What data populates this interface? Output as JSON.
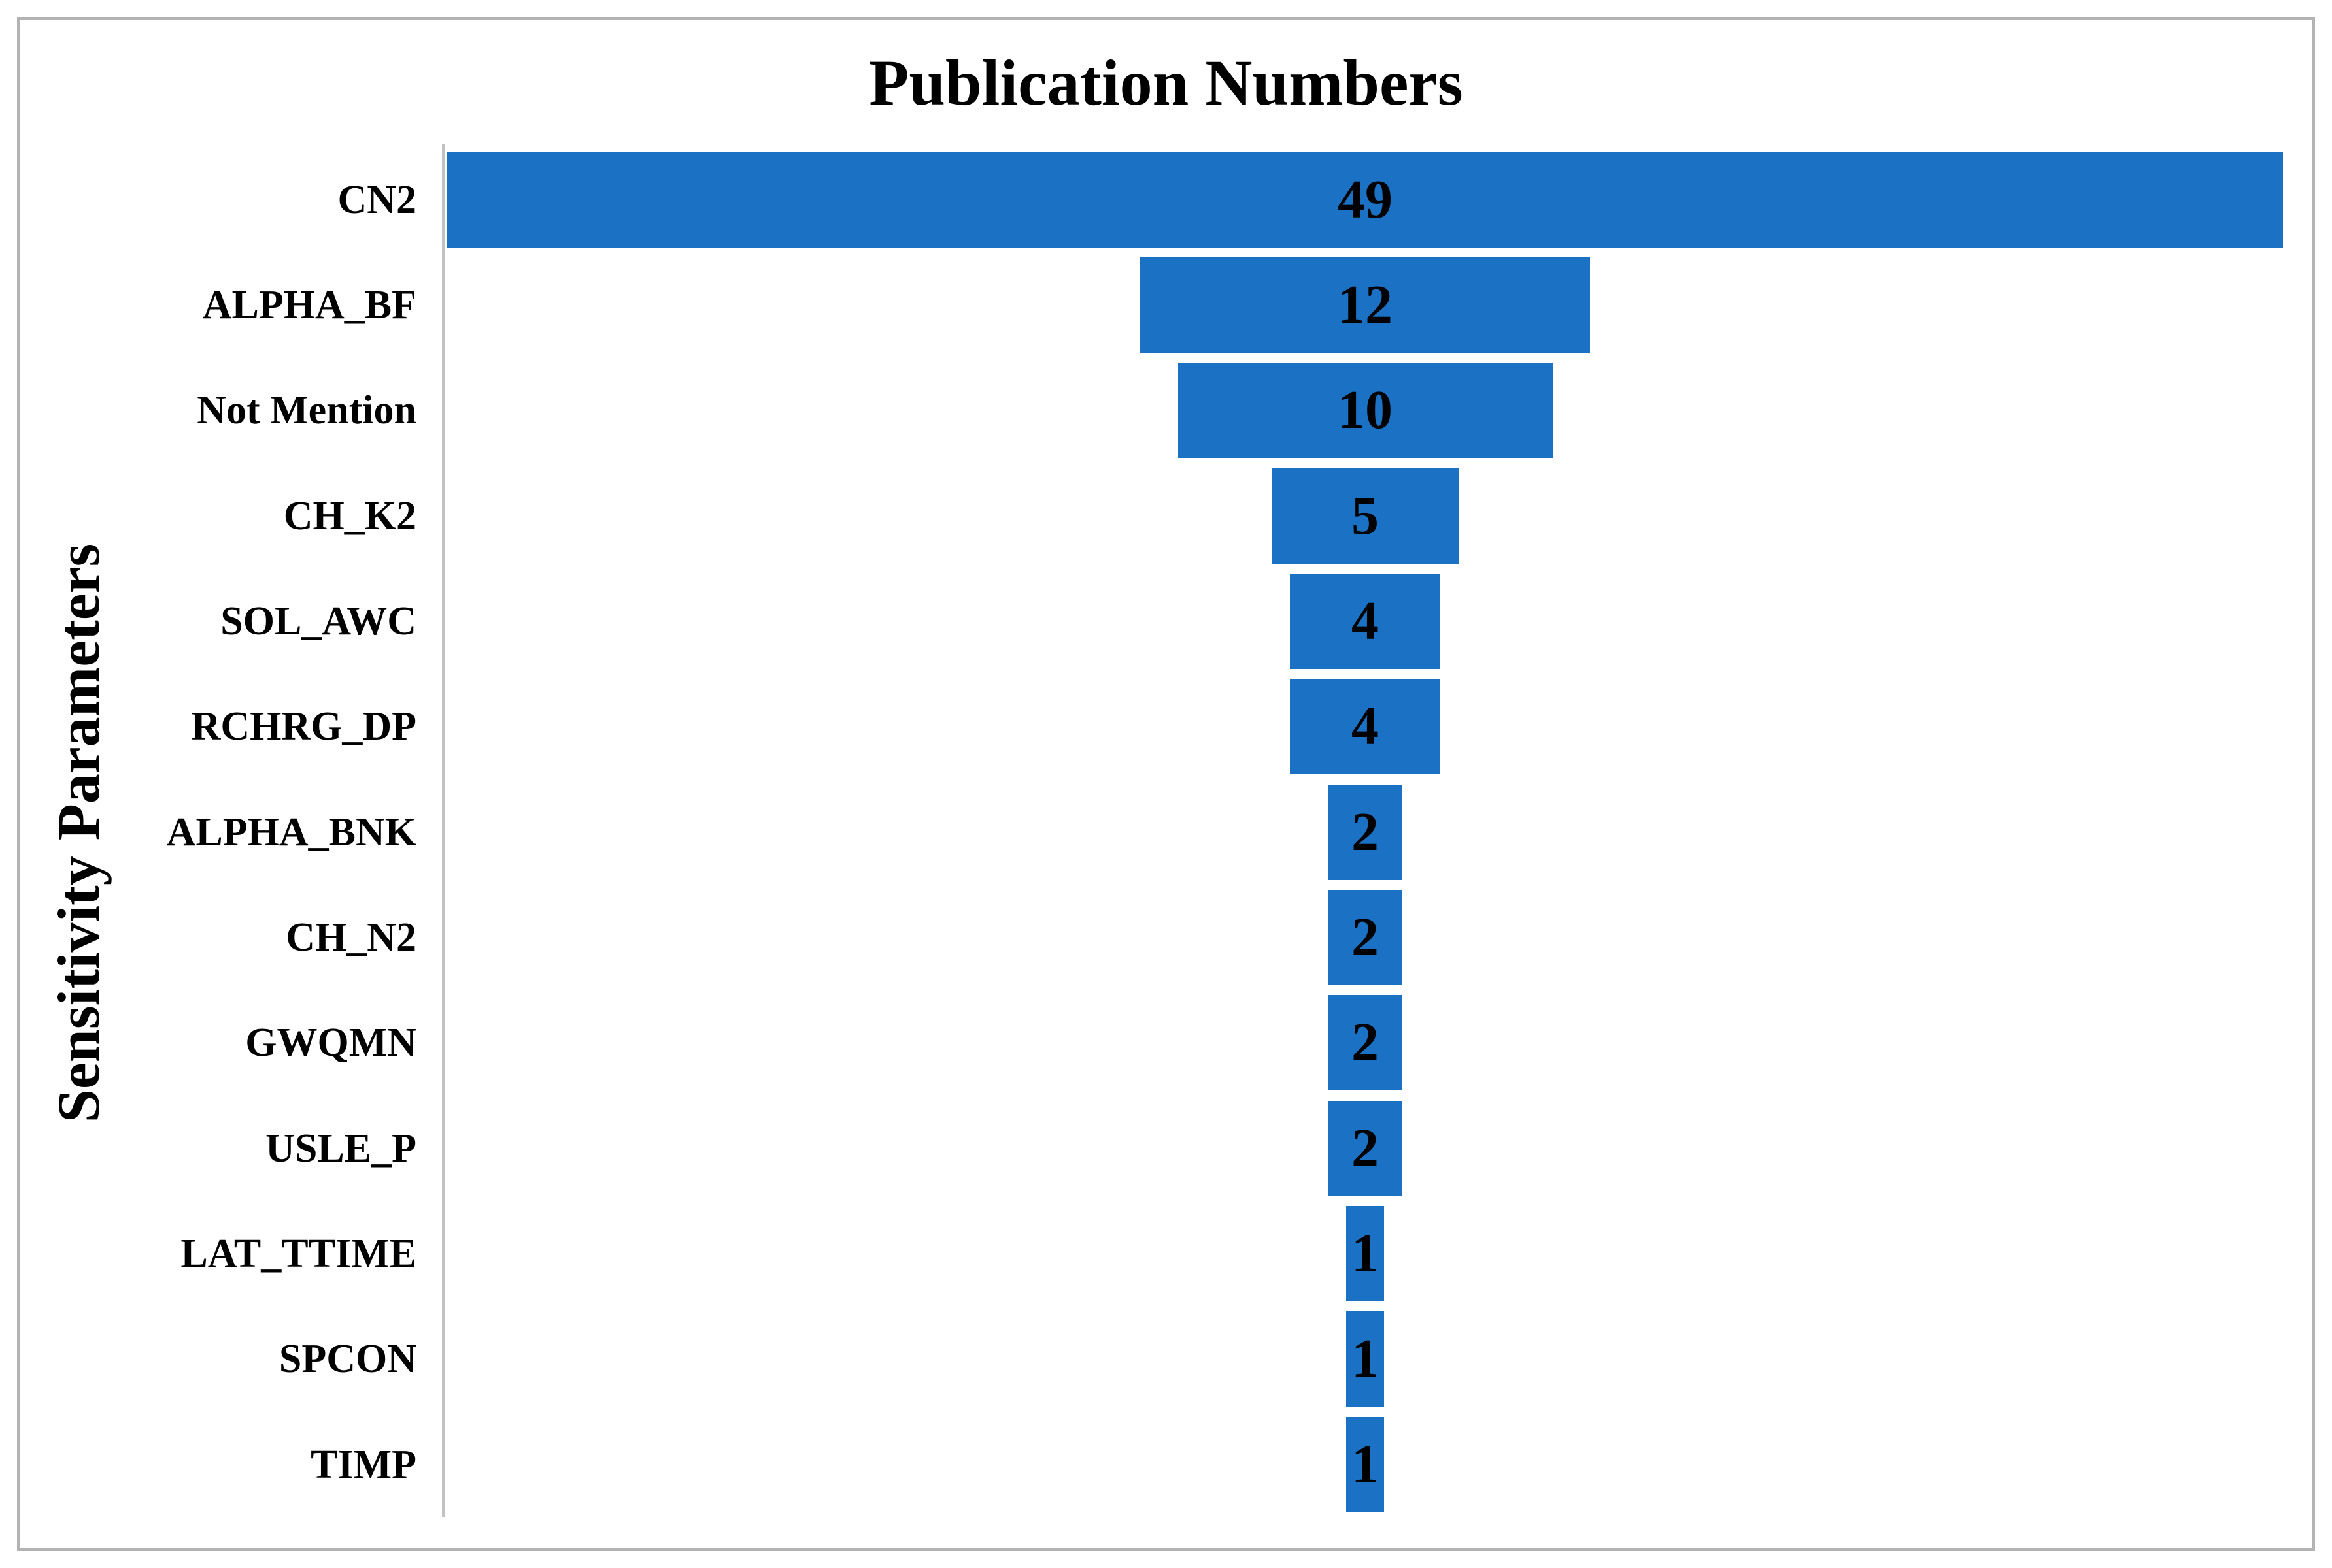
{
  "chart_data": {
    "type": "bar",
    "orientation": "horizontal",
    "style": "centered-funnel",
    "title": "Publication Numbers",
    "xlabel": "",
    "ylabel": "Sensitivity Parameters",
    "categories": [
      "CN2",
      "ALPHA_BF",
      "Not Mention",
      "CH_K2",
      "SOL_AWC",
      "RCHRG_DP",
      "ALPHA_BNK",
      "CH_N2",
      "GWQMN",
      "USLE_P",
      "LAT_TTIME",
      "SPCON",
      "TIMP"
    ],
    "values": [
      49,
      12,
      10,
      5,
      4,
      4,
      2,
      2,
      2,
      2,
      1,
      1,
      1
    ],
    "data_labels": [
      "49",
      "12",
      "10",
      "5",
      "4",
      "4",
      "2",
      "2",
      "2",
      "2",
      "1",
      "1",
      "1"
    ],
    "legend": "none",
    "grid": "off",
    "x_axis_ticks": "none",
    "colors": {
      "bar_fill": "#1b72c4",
      "value_label_text": "#000000",
      "axis_line": "#c2c2c2",
      "frame_border": "#b3b3b3",
      "title_text": "#000000",
      "background": "#ffffff"
    }
  }
}
